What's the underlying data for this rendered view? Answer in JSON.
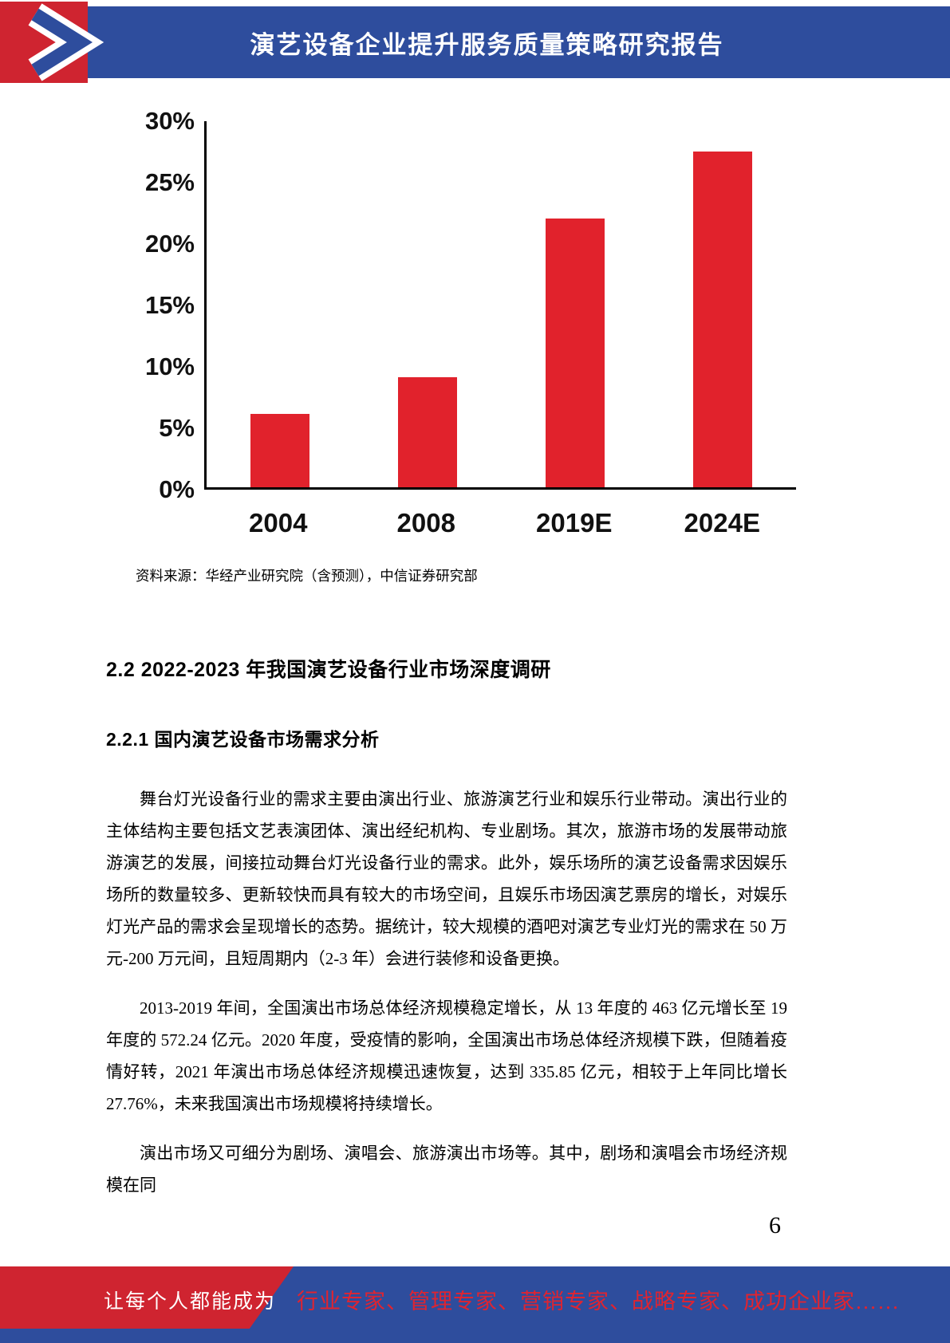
{
  "header": {
    "title": "演艺设备企业提升服务质量策略研究报告"
  },
  "chart_data": {
    "type": "bar",
    "categories": [
      "2004",
      "2008",
      "2019E",
      "2024E"
    ],
    "values": [
      6,
      9,
      22,
      27.5
    ],
    "title": "",
    "xlabel": "",
    "ylabel": "",
    "ylim": [
      0,
      30
    ],
    "yticks": [
      "0%",
      "5%",
      "10%",
      "15%",
      "20%",
      "25%",
      "30%"
    ],
    "bar_color": "#e1222c",
    "grid": "off",
    "legend": "none"
  },
  "source_note": "资料来源：华经产业研究院（含预测），中信证券研究部",
  "sections": {
    "heading_2_2": "2.2 2022-2023 年我国演艺设备行业市场深度调研",
    "heading_2_2_1": "2.2.1 国内演艺设备市场需求分析"
  },
  "paragraphs": {
    "p1": "舞台灯光设备行业的需求主要由演出行业、旅游演艺行业和娱乐行业带动。演出行业的主体结构主要包括文艺表演团体、演出经纪机构、专业剧场。其次，旅游市场的发展带动旅游演艺的发展，间接拉动舞台灯光设备行业的需求。此外，娱乐场所的演艺设备需求因娱乐场所的数量较多、更新较快而具有较大的市场空间，且娱乐市场因演艺票房的增长，对娱乐灯光产品的需求会呈现增长的态势。据统计，较大规模的酒吧对演艺专业灯光的需求在 50 万元-200 万元间，且短周期内（2-3 年）会进行装修和设备更换。",
    "p2": "2013-2019 年间，全国演出市场总体经济规模稳定增长，从 13 年度的 463 亿元增长至 19 年度的 572.24 亿元。2020 年度，受疫情的影响，全国演出市场总体经济规模下跌，但随着疫情好转，2021 年演出市场总体经济规模迅速恢复，达到 335.85 亿元，相较于上年同比增长 27.76%，未来我国演出市场规模将持续增长。",
    "p3": "演出市场又可细分为剧场、演唱会、旅游演出市场等。其中，剧场和演唱会市场经济规模在同"
  },
  "page_number": "6",
  "footer": {
    "left_text": "让每个人都能成为",
    "right_text": "行业专家、管理专家、营销专家、战略专家、成功企业家……"
  },
  "colors": {
    "brand_blue": "#2e4d9d",
    "brand_red": "#cf2430",
    "bar_red": "#e1222c"
  }
}
